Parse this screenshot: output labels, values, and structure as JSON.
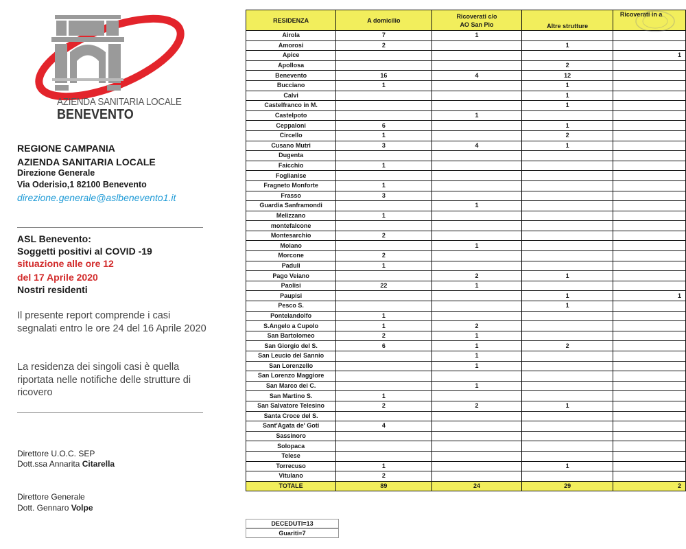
{
  "logo": {
    "line1": "AZIENDA SANITARIA LOCALE",
    "line2": "BENEVENTO",
    "colors": {
      "red": "#e3242b",
      "gray": "#9a9a9a"
    }
  },
  "header": {
    "region": "REGIONE CAMPANIA",
    "agency": "AZIENDA SANITARIA LOCALE",
    "office": "Direzione Generale",
    "address": "Via Oderisio,1 82100 Benevento",
    "email": "direzione.generale@aslbenevento1.it"
  },
  "report": {
    "line1": "ASL Benevento:",
    "line2": "Soggetti positivi al COVID -19",
    "line3": "situazione alle ore 12",
    "line4": "del 17 Aprile 2020",
    "line5": "Nostri residenti",
    "note1": "Il presente report comprende i casi segnalati entro le ore 24 del 16 Aprile 2020",
    "note2": "La residenza dei singoli casi è quella riportata nelle notifiche delle strutture di ricovero"
  },
  "signatures": [
    {
      "role": "Direttore U.O.C. SEP",
      "prefix": "Dott.ssa Annarita ",
      "surname": "Citarella"
    },
    {
      "role": "Direttore Generale",
      "prefix": "Dott. Gennaro ",
      "surname": "Volpe"
    }
  ],
  "table": {
    "headers": [
      "RESIDENZA",
      "A domicilio",
      "Ricoverati c/o\nAO San Pio",
      "Altre strutture",
      "Ricoverati in a"
    ],
    "rows": [
      [
        "Airola",
        "7",
        "1",
        "",
        ""
      ],
      [
        "Amorosi",
        "2",
        "",
        "1",
        ""
      ],
      [
        "Apice",
        "",
        "",
        "",
        "1"
      ],
      [
        "Apollosa",
        "",
        "",
        "2",
        ""
      ],
      [
        "Benevento",
        "16",
        "4",
        "12",
        ""
      ],
      [
        "Bucciano",
        "1",
        "",
        "1",
        ""
      ],
      [
        "Calvi",
        "",
        "",
        "1",
        ""
      ],
      [
        "Castelfranco in M.",
        "",
        "",
        "1",
        ""
      ],
      [
        "Castelpoto",
        "",
        "1",
        "",
        ""
      ],
      [
        "Ceppaloni",
        "6",
        "",
        "1",
        ""
      ],
      [
        "Circello",
        "1",
        "",
        "2",
        ""
      ],
      [
        "Cusano Mutri",
        "3",
        "4",
        "1",
        ""
      ],
      [
        "Dugenta",
        "",
        "",
        "",
        ""
      ],
      [
        "Faicchio",
        "1",
        "",
        "",
        ""
      ],
      [
        "Foglianise",
        "",
        "",
        "",
        ""
      ],
      [
        "Fragneto Monforte",
        "1",
        "",
        "",
        ""
      ],
      [
        "Frasso",
        "3",
        "",
        "",
        ""
      ],
      [
        "Guardia Sanframondi",
        "",
        "1",
        "",
        ""
      ],
      [
        "Melizzano",
        "1",
        "",
        "",
        ""
      ],
      [
        "montefalcone",
        "",
        "",
        "",
        ""
      ],
      [
        "Montesarchio",
        "2",
        "",
        "",
        ""
      ],
      [
        "Moiano",
        "",
        "1",
        "",
        ""
      ],
      [
        "Morcone",
        "2",
        "",
        "",
        ""
      ],
      [
        "Paduli",
        "1",
        "",
        "",
        ""
      ],
      [
        "Pago Veiano",
        "",
        "2",
        "1",
        ""
      ],
      [
        "Paolisi",
        "22",
        "1",
        "",
        ""
      ],
      [
        "Paupisi",
        "",
        "",
        "1",
        "1"
      ],
      [
        "Pesco S.",
        "",
        "",
        "1",
        ""
      ],
      [
        "Pontelandolfo",
        "1",
        "",
        "",
        ""
      ],
      [
        "S.Angelo a Cupolo",
        "1",
        "2",
        "",
        ""
      ],
      [
        "San Bartolomeo",
        "2",
        "1",
        "",
        ""
      ],
      [
        "San Giorgio del S.",
        "6",
        "1",
        "2",
        ""
      ],
      [
        "San Leucio del Sannio",
        "",
        "1",
        "",
        ""
      ],
      [
        "San Lorenzello",
        "",
        "1",
        "",
        ""
      ],
      [
        "San Lorenzo Maggiore",
        "",
        "",
        "",
        ""
      ],
      [
        "San Marco dei C.",
        "",
        "1",
        "",
        ""
      ],
      [
        "San Martino S.",
        "1",
        "",
        "",
        ""
      ],
      [
        "San Salvatore Telesino",
        "2",
        "2",
        "1",
        ""
      ],
      [
        "Santa Croce del S.",
        "",
        "",
        "",
        ""
      ],
      [
        "Sant'Agata de' Goti",
        "4",
        "",
        "",
        ""
      ],
      [
        "Sassinoro",
        "",
        "",
        "",
        ""
      ],
      [
        "Solopaca",
        "",
        "",
        "",
        ""
      ],
      [
        "Telese",
        "",
        "",
        "",
        ""
      ],
      [
        "Torrecuso",
        "1",
        "",
        "1",
        ""
      ],
      [
        "Vitulano",
        "2",
        "",
        "",
        ""
      ]
    ],
    "total": [
      "TOTALE",
      "89",
      "24",
      "29",
      "2"
    ],
    "deceased": "DECEDUTI=13",
    "recovered": "Guariti=7",
    "colors": {
      "header_bg": "#f2ee5c"
    }
  }
}
